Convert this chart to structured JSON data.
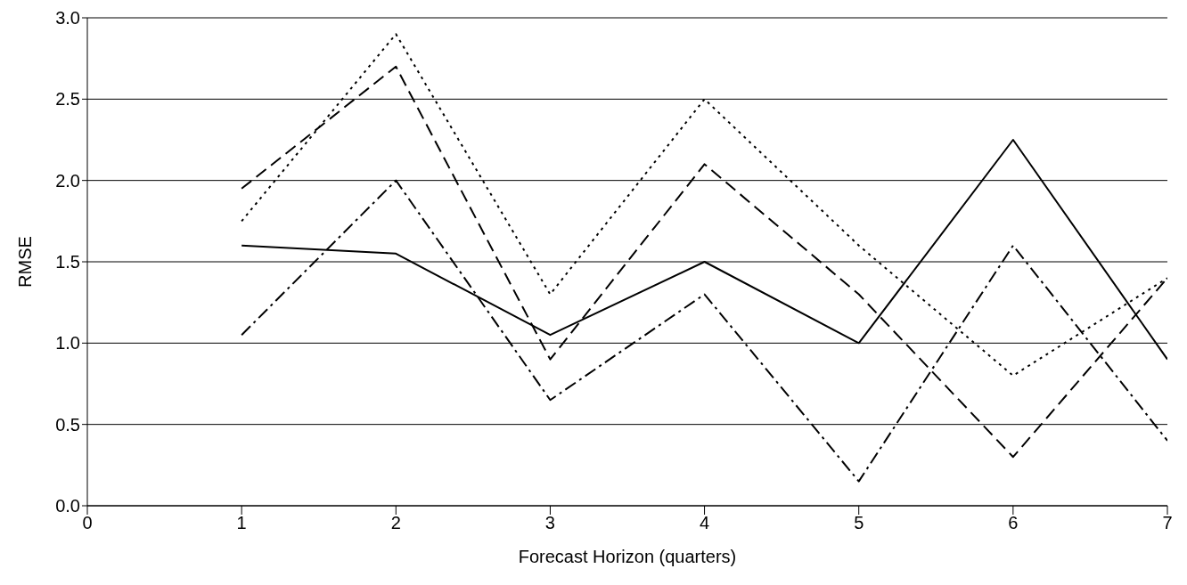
{
  "chart_data": {
    "type": "line",
    "xlabel": "Forecast Horizon (quarters)",
    "ylabel": "RMSE",
    "x": [
      1,
      2,
      3,
      4,
      5,
      6,
      7
    ],
    "series": [
      {
        "color": "#000000",
        "line_style": "solid",
        "values": [
          1.6,
          1.55,
          1.05,
          1.5,
          1.0,
          2.25,
          0.9
        ]
      },
      {
        "color": "#000000",
        "line_style": "dashed",
        "values": [
          1.95,
          2.7,
          0.9,
          2.1,
          1.3,
          0.3,
          1.4
        ]
      },
      {
        "color": "#000000",
        "line_style": "dotted",
        "values": [
          1.75,
          2.9,
          1.3,
          2.5,
          1.6,
          0.8,
          1.4
        ]
      },
      {
        "color": "#000000",
        "line_style": "dashdot",
        "values": [
          1.05,
          2.0,
          0.65,
          1.3,
          0.15,
          1.6,
          0.4
        ]
      }
    ],
    "xlim": [
      0,
      7
    ],
    "xticks": [
      0,
      1,
      2,
      3,
      4,
      5,
      6,
      7
    ],
    "ylim": [
      0,
      3
    ],
    "yticks": [
      {
        "value": 0,
        "label": "0.0"
      },
      {
        "value": 0.5,
        "label": "0.5"
      },
      {
        "value": 1,
        "label": "1.0"
      },
      {
        "value": 1.5,
        "label": "1.5"
      },
      {
        "value": 2,
        "label": "2.0"
      },
      {
        "value": 2.5,
        "label": "2.5"
      },
      {
        "value": 3,
        "label": "3.0"
      }
    ],
    "grid": "y",
    "legend": false,
    "marker": "none"
  }
}
